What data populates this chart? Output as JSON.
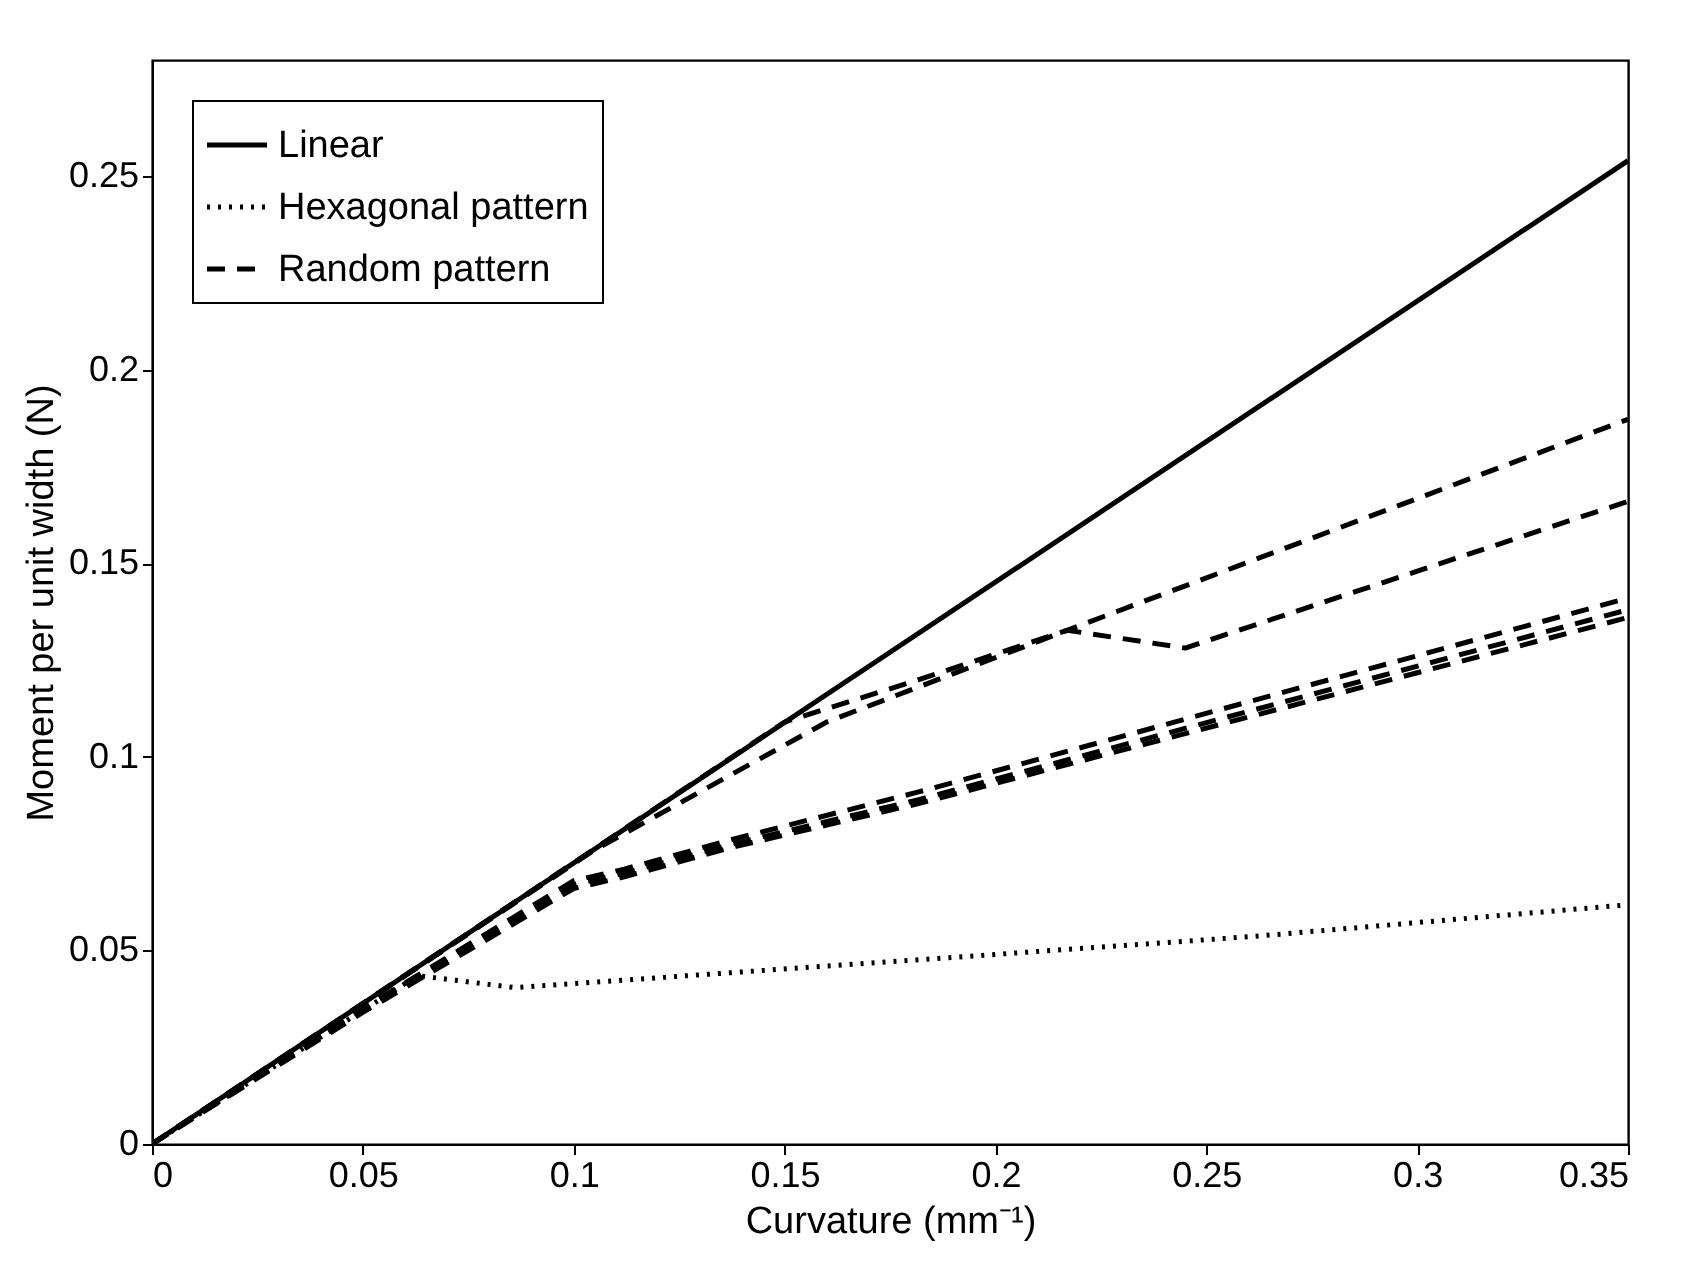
{
  "chart_data": {
    "type": "line",
    "xlabel": "Curvature (mm⁻¹)",
    "ylabel": "Moment per unit width (N)",
    "xlim": [
      0,
      0.35
    ],
    "ylim": [
      0,
      0.28
    ],
    "xticks": [
      0,
      0.05,
      0.1,
      0.15,
      0.2,
      0.25,
      0.3,
      0.35
    ],
    "yticks": [
      0,
      0.05,
      0.1,
      0.15,
      0.2,
      0.25
    ],
    "grid": false,
    "legend": "top left",
    "series": [
      {
        "name": "Linear",
        "color": "#000000",
        "line_style": "solid",
        "x": [
          0,
          0.35
        ],
        "values": [
          0,
          0.254
        ]
      },
      {
        "name": "Hexagonal pattern",
        "color": "#000000",
        "line_style": "dotted",
        "x": [
          0,
          0.063,
          0.086,
          0.178,
          0.261,
          0.35
        ],
        "values": [
          0,
          0.0435,
          0.0404,
          0.0473,
          0.0536,
          0.0618
        ]
      },
      {
        "name": "Random pattern",
        "color": "#000000",
        "line_style": "dashed",
        "x": [
          0,
          0.15,
          0.182,
          0.217,
          0.35
        ],
        "values": [
          0,
          0.109,
          0.12,
          0.1327,
          0.1872
        ]
      },
      {
        "color": "#000000",
        "line_style": "dashed",
        "x": [
          0,
          0.105,
          0.16,
          0.217,
          0.245,
          0.35
        ],
        "values": [
          0,
          0.076,
          0.109,
          0.1327,
          0.1281,
          0.166
        ]
      },
      {
        "color": "#000000",
        "line_style": "dashed",
        "x": [
          0,
          0.05,
          0.1,
          0.112,
          0.137,
          0.182,
          0.35
        ],
        "values": [
          0,
          0.035,
          0.068,
          0.071,
          0.0785,
          0.091,
          0.141
        ]
      },
      {
        "color": "#000000",
        "line_style": "dashed",
        "x": [
          0,
          0.05,
          0.1,
          0.112,
          0.137,
          0.182,
          0.35
        ],
        "values": [
          0,
          0.035,
          0.067,
          0.07,
          0.0773,
          0.089,
          0.138
        ]
      },
      {
        "color": "#000000",
        "line_style": "dashed",
        "x": [
          0,
          0.05,
          0.1,
          0.112,
          0.137,
          0.182,
          0.35
        ],
        "values": [
          0,
          0.034,
          0.066,
          0.069,
          0.0765,
          0.088,
          0.136
        ]
      }
    ]
  }
}
